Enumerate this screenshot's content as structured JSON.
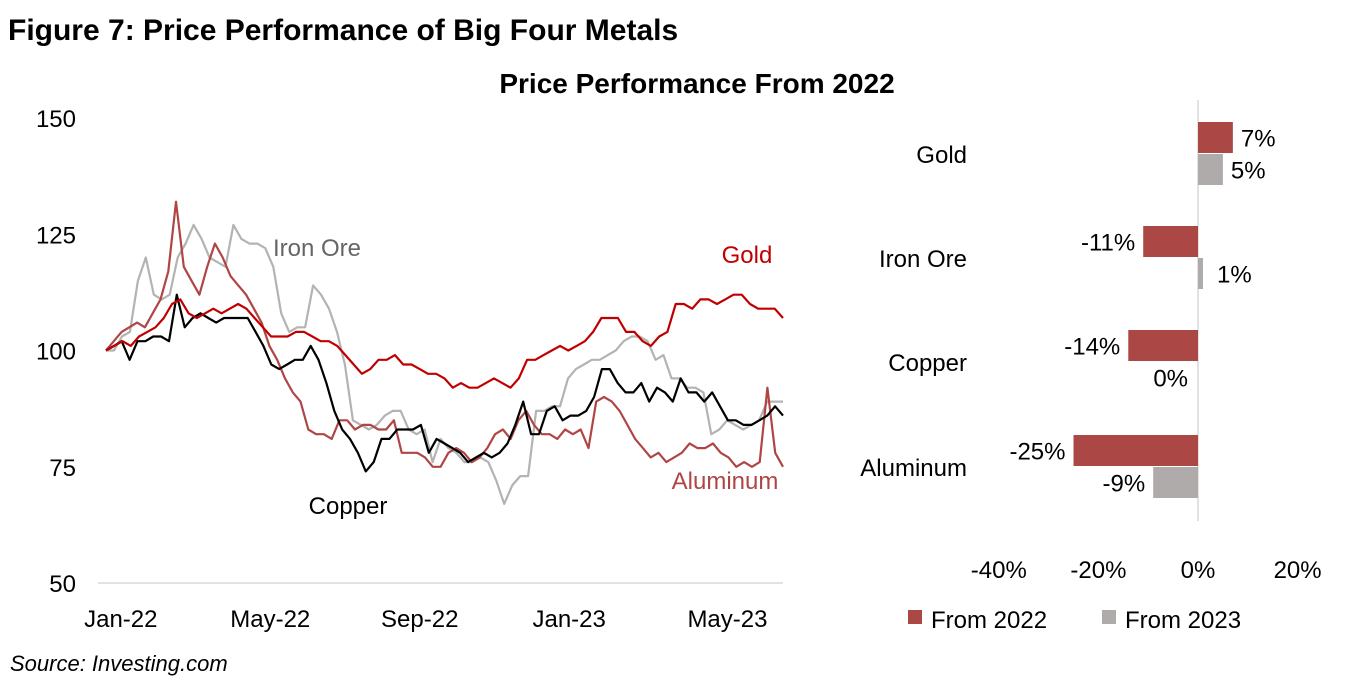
{
  "figure_title": "Figure 7: Price Performance of Big Four Metals",
  "source": "Source: Investing.com",
  "chart_data": [
    {
      "type": "line",
      "title": "",
      "xlabel": "",
      "ylabel": "",
      "ylim": [
        50,
        150
      ],
      "y_ticks": [
        "50",
        "75",
        "100",
        "125",
        "150"
      ],
      "x_range_weeks": [
        0,
        77
      ],
      "x_ticks": [
        {
          "label": "Jan-22",
          "week": 1
        },
        {
          "label": "May-22",
          "week": 18
        },
        {
          "label": "Sep-22",
          "week": 35
        },
        {
          "label": "Jan-23",
          "week": 52
        },
        {
          "label": "May-23",
          "week": 70
        }
      ],
      "series": [
        {
          "name": "Gold",
          "color": "#C00000",
          "label_color": "#C00000",
          "values": [
            100,
            101,
            102,
            101,
            103,
            104,
            105,
            107,
            110,
            111,
            108,
            107,
            108,
            109,
            108,
            109,
            110,
            109,
            107,
            105,
            103,
            103,
            103,
            104,
            104,
            103,
            102,
            102,
            101,
            99,
            97,
            95,
            96,
            98,
            98,
            99,
            97,
            97,
            96,
            95,
            95,
            94,
            92,
            93,
            92,
            92,
            93,
            94,
            93,
            92,
            94,
            98,
            98,
            99,
            100,
            101,
            100,
            101,
            102,
            104,
            107,
            107,
            107,
            104,
            104,
            102,
            101,
            103,
            104,
            110,
            110,
            109,
            111,
            111,
            110,
            111,
            112,
            112,
            110,
            109,
            109,
            109,
            107
          ]
        },
        {
          "name": "Iron Ore",
          "color": "#B3B3B3",
          "label_color": "#666666",
          "values": [
            100,
            100,
            103,
            104,
            115,
            120,
            112,
            111,
            112,
            120,
            123,
            127,
            124,
            120,
            119,
            118,
            127,
            124,
            123,
            123,
            122,
            118,
            108,
            104,
            105,
            105,
            114,
            112,
            109,
            104,
            97,
            85,
            84,
            83,
            84,
            86,
            87,
            87,
            83,
            82,
            83,
            76,
            81,
            79,
            78,
            76,
            76,
            77,
            76,
            72,
            67,
            71,
            73,
            73,
            87,
            87,
            88,
            88,
            94,
            96,
            97,
            98,
            98,
            99,
            100,
            102,
            103,
            103,
            102,
            98,
            99,
            94,
            94,
            92,
            92,
            91,
            82,
            83,
            85,
            84,
            83,
            84,
            85,
            89,
            89,
            89
          ]
        },
        {
          "name": "Copper",
          "color": "#000000",
          "label_color": "#000000",
          "values": [
            100,
            101,
            102,
            98,
            102,
            102,
            103,
            103,
            102,
            112,
            105,
            107,
            108,
            107,
            106,
            107,
            107,
            107,
            107,
            104,
            101,
            97,
            96,
            97,
            98,
            98,
            101,
            98,
            93,
            87,
            83,
            81,
            78,
            74,
            76,
            81,
            81,
            83,
            83,
            83,
            84,
            78,
            81,
            80,
            79,
            78,
            76,
            77,
            78,
            77,
            78,
            80,
            84,
            89,
            82,
            82,
            87,
            88,
            85,
            86,
            86,
            87,
            90,
            96,
            96,
            93,
            91,
            91,
            93,
            89,
            92,
            91,
            89,
            94,
            91,
            91,
            89,
            91,
            88,
            85,
            85,
            84,
            84,
            85,
            86,
            88,
            86
          ]
        },
        {
          "name": "Aluminum",
          "color": "#B04545",
          "label_color": "#B04545",
          "values": [
            100,
            102,
            104,
            105,
            106,
            105,
            108,
            111,
            117,
            132,
            118,
            115,
            112,
            118,
            123,
            120,
            116,
            114,
            112,
            109,
            106,
            101,
            98,
            94,
            91,
            89,
            83,
            82,
            82,
            81,
            85,
            85,
            83,
            84,
            84,
            83,
            83,
            85,
            78,
            78,
            78,
            77,
            75,
            75,
            78,
            79,
            78,
            76,
            77,
            79,
            82,
            83,
            81,
            85,
            87,
            84,
            82,
            82,
            81,
            83,
            82,
            83,
            79,
            89,
            90,
            89,
            87,
            84,
            81,
            79,
            77,
            78,
            76,
            77,
            78,
            80,
            79,
            79,
            80,
            78,
            77,
            75,
            76,
            75,
            76,
            92,
            78,
            75
          ]
        }
      ]
    },
    {
      "type": "bar",
      "orientation": "horizontal",
      "title": "Price Performance From 2022",
      "xlim": [
        -40,
        20
      ],
      "x_ticks": [
        "-40%",
        "-20%",
        "0%",
        "20%"
      ],
      "x_tick_values": [
        -40,
        -20,
        0,
        20
      ],
      "categories": [
        "Gold",
        "Iron Ore",
        "Copper",
        "Aluminum"
      ],
      "legend_position": "bottom",
      "series": [
        {
          "name": "From 2022",
          "color": "#AB4744",
          "values": [
            7,
            -11,
            -14,
            -25
          ],
          "labels": [
            "7%",
            "-11%",
            "-14%",
            "-25%"
          ]
        },
        {
          "name": "From 2023",
          "color": "#AFABAA",
          "values": [
            5,
            1,
            0,
            -9
          ],
          "labels": [
            "5%",
            "1%",
            "0%",
            "-9%"
          ]
        }
      ]
    }
  ]
}
